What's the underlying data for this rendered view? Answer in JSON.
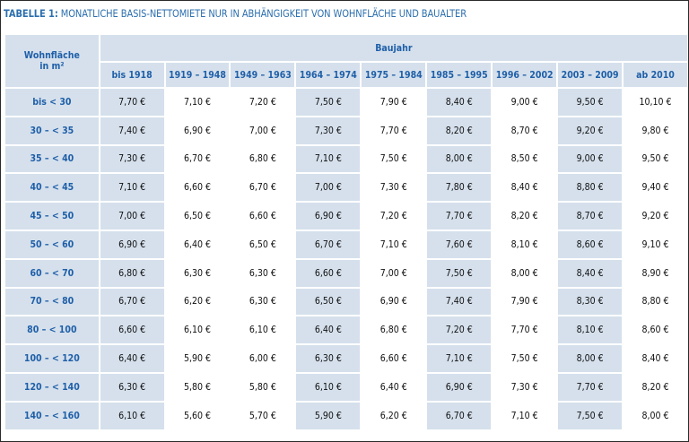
{
  "title": {
    "prefix": "TABELLE 1:",
    "text": "MONATLICHE BASIS-NETTOMIETE NUR IN ABHÄNGIGKEIT VON WOHNFLÄCHE UND BAUALTER"
  },
  "header": {
    "corner_line1": "Wohnfläche",
    "corner_line2": "in m²",
    "group": "Baujahr",
    "years": [
      "bis 1918",
      "1919 – 1948",
      "1949 – 1963",
      "1964 – 1974",
      "1975 – 1984",
      "1985 – 1995",
      "1996 – 2002",
      "2003 – 2009",
      "ab 2010"
    ]
  },
  "rows": [
    {
      "label": "bis < 30",
      "values": [
        "7,70 €",
        "7,10 €",
        "7,20 €",
        "7,50 €",
        "7,90 €",
        "8,40 €",
        "9,00 €",
        "9,50 €",
        "10,10 €"
      ]
    },
    {
      "label": "30 – < 35",
      "values": [
        "7,40 €",
        "6,90 €",
        "7,00 €",
        "7,30 €",
        "7,70 €",
        "8,20 €",
        "8,70 €",
        "9,20 €",
        "9,80 €"
      ]
    },
    {
      "label": "35 – < 40",
      "values": [
        "7,30 €",
        "6,70 €",
        "6,80 €",
        "7,10 €",
        "7,50 €",
        "8,00 €",
        "8,50 €",
        "9,00 €",
        "9,50 €"
      ]
    },
    {
      "label": "40 – < 45",
      "values": [
        "7,10 €",
        "6,60 €",
        "6,70 €",
        "7,00 €",
        "7,30 €",
        "7,80 €",
        "8,40 €",
        "8,80 €",
        "9,40 €"
      ]
    },
    {
      "label": "45 – < 50",
      "values": [
        "7,00 €",
        "6,50 €",
        "6,60 €",
        "6,90 €",
        "7,20 €",
        "7,70 €",
        "8,20 €",
        "8,70 €",
        "9,20 €"
      ]
    },
    {
      "label": "50 – < 60",
      "values": [
        "6,90 €",
        "6,40 €",
        "6,50 €",
        "6,70 €",
        "7,10 €",
        "7,60 €",
        "8,10 €",
        "8,60 €",
        "9,10 €"
      ]
    },
    {
      "label": "60 – < 70",
      "values": [
        "6,80 €",
        "6,30 €",
        "6,30 €",
        "6,60 €",
        "7,00 €",
        "7,50 €",
        "8,00 €",
        "8,40 €",
        "8,90 €"
      ]
    },
    {
      "label": "70 – < 80",
      "values": [
        "6,70 €",
        "6,20 €",
        "6,30 €",
        "6,50 €",
        "6,90 €",
        "7,40 €",
        "7,90 €",
        "8,30 €",
        "8,80 €"
      ]
    },
    {
      "label": "80 – < 100",
      "values": [
        "6,60 €",
        "6,10 €",
        "6,10 €",
        "6,40 €",
        "6,80 €",
        "7,20 €",
        "7,70 €",
        "8,10 €",
        "8,60 €"
      ]
    },
    {
      "label": "100 – < 120",
      "values": [
        "6,40 €",
        "5,90 €",
        "6,00 €",
        "6,30 €",
        "6,60 €",
        "7,10 €",
        "7,50 €",
        "8,00 €",
        "8,40 €"
      ]
    },
    {
      "label": "120 – < 140",
      "values": [
        "6,30 €",
        "5,80 €",
        "5,80 €",
        "6,10 €",
        "6,40 €",
        "6,90 €",
        "7,30 €",
        "7,70 €",
        "8,20 €"
      ]
    },
    {
      "label": "140 – < 160",
      "values": [
        "6,10 €",
        "5,60 €",
        "5,70 €",
        "5,90 €",
        "6,20 €",
        "6,70 €",
        "7,10 €",
        "7,50 €",
        "8,00 €"
      ]
    }
  ],
  "colors": {
    "accent_text": "#1f5fa8",
    "title_text": "#2c6fae",
    "shade": "#d5e0ec"
  }
}
